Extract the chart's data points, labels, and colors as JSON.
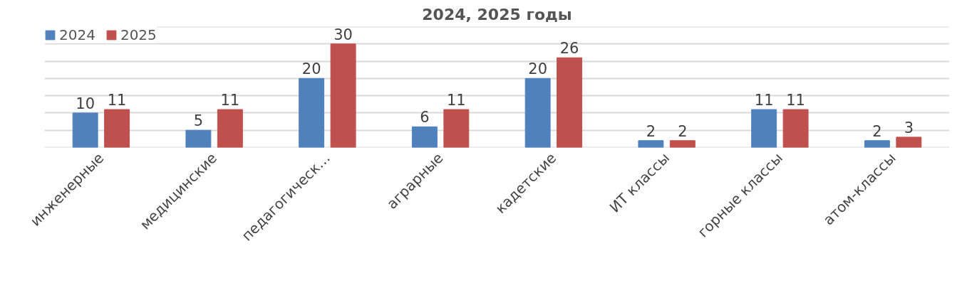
{
  "chart_data": {
    "type": "bar",
    "title": "2024, 2025 годы",
    "categories": [
      "инженерные",
      "медицинские",
      "педагогическ…",
      "аграрные",
      "кадетские",
      "ИТ классы",
      "горные классы",
      "атом-классы"
    ],
    "series": [
      {
        "name": "2024",
        "color": "#4f81bd",
        "values": [
          10,
          5,
          20,
          6,
          20,
          2,
          11,
          2
        ]
      },
      {
        "name": "2025",
        "color": "#c0504d",
        "values": [
          11,
          11,
          30,
          11,
          26,
          2,
          11,
          3
        ]
      }
    ],
    "ylim": [
      0,
      35
    ],
    "yticks": [
      0,
      5,
      10,
      15,
      20,
      25,
      30,
      35
    ],
    "grid": "y",
    "tick_labels": "x",
    "legend": "top left",
    "data_labels": true
  }
}
